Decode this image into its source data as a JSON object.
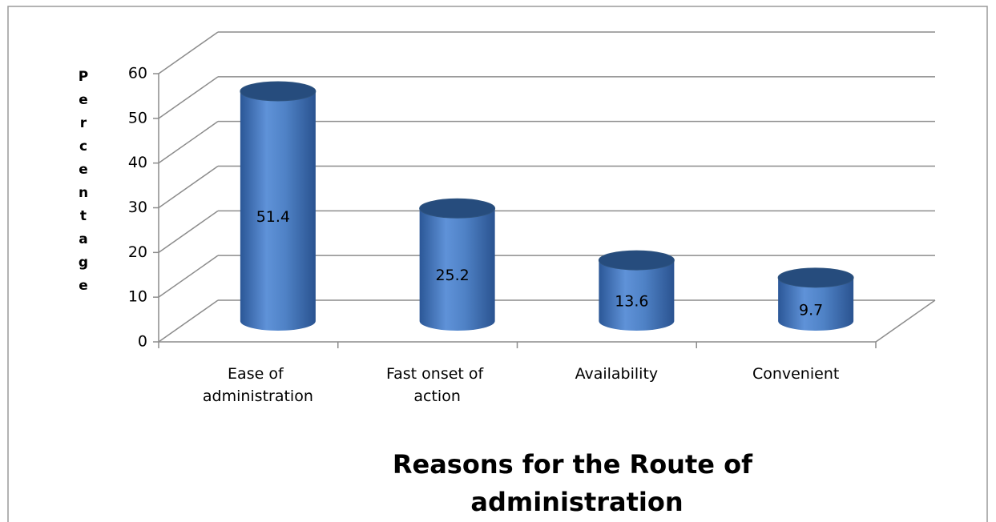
{
  "chart_data": {
    "type": "bar3d",
    "y_label": "Percentage",
    "x_label": "Reasons for the Route of administration",
    "categories": [
      "Ease of administration",
      "Fast onset of action",
      "Availability",
      "Convenient"
    ],
    "values": [
      51.4,
      25.2,
      13.6,
      9.7
    ],
    "color": "#4a7ebb",
    "ylim": [
      0,
      60
    ],
    "yticks": [
      0,
      10,
      20,
      30,
      40,
      50,
      60
    ],
    "grid": true
  }
}
